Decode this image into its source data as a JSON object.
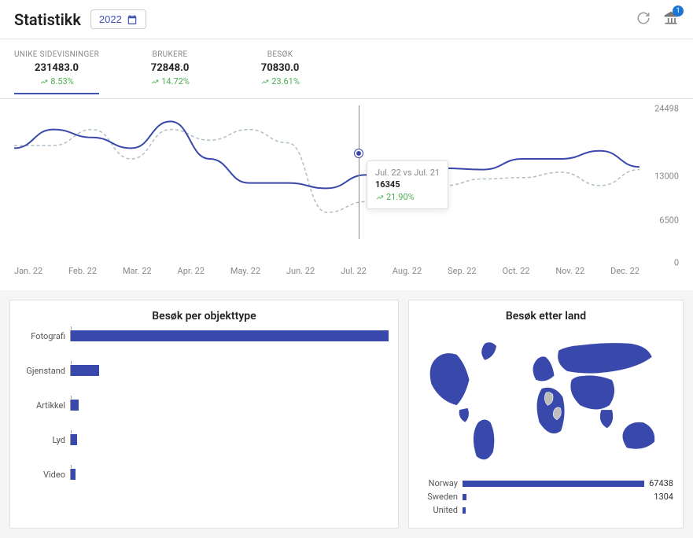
{
  "header": {
    "title": "Statistikk",
    "year": "2022",
    "badge_count": "1"
  },
  "metrics": [
    {
      "label": "UNIKE SIDEVISNINGER",
      "value": "231483.0",
      "change": "8.53%",
      "active": true
    },
    {
      "label": "BRUKERE",
      "value": "72848.0",
      "change": "14.72%",
      "active": false
    },
    {
      "label": "BESØK",
      "value": "70830.0",
      "change": "23.61%",
      "active": false
    }
  ],
  "line_chart": {
    "y_ticks": [
      "24498",
      "13000",
      "6500",
      "0"
    ],
    "y_positions": [
      2,
      45,
      73,
      100
    ],
    "x_labels": [
      "Jan. 22",
      "Feb. 22",
      "Mar. 22",
      "Apr. 22",
      "May. 22",
      "Jun. 22",
      "Jul. 22",
      "Aug. 22",
      "Sep. 22",
      "Oct. 22",
      "Nov. 22",
      "Dec. 22"
    ],
    "series_current": [
      32,
      18,
      24,
      32,
      12,
      40,
      58,
      58,
      62,
      52,
      54,
      47,
      48,
      40,
      40,
      34,
      46
    ],
    "series_previous": [
      30,
      30,
      18,
      40,
      18,
      26,
      18,
      28,
      80,
      72,
      75,
      60,
      55,
      54,
      50,
      60,
      48
    ],
    "current_color": "#3949ab",
    "previous_color": "#b0bec5",
    "tooltip": {
      "title": "Jul. 22 vs Jul. 21",
      "value": "16345",
      "change": "21.90%"
    }
  },
  "bar_chart": {
    "title": "Besøk per objekttype",
    "bars": [
      {
        "label": "Fotografi",
        "pct": 100
      },
      {
        "label": "Gjenstand",
        "pct": 9
      },
      {
        "label": "Artikkel",
        "pct": 2.5
      },
      {
        "label": "Lyd",
        "pct": 2
      },
      {
        "label": "Video",
        "pct": 1.5
      }
    ],
    "bar_color": "#3949ab"
  },
  "country_chart": {
    "title": "Besøk etter land",
    "map_color": "#3949ab",
    "rows": [
      {
        "name": "Norway",
        "pct": 100,
        "value": "67438"
      },
      {
        "name": "Sweden",
        "pct": 2,
        "value": "1304"
      },
      {
        "name": "United",
        "pct": 1.5,
        "value": ""
      }
    ]
  }
}
